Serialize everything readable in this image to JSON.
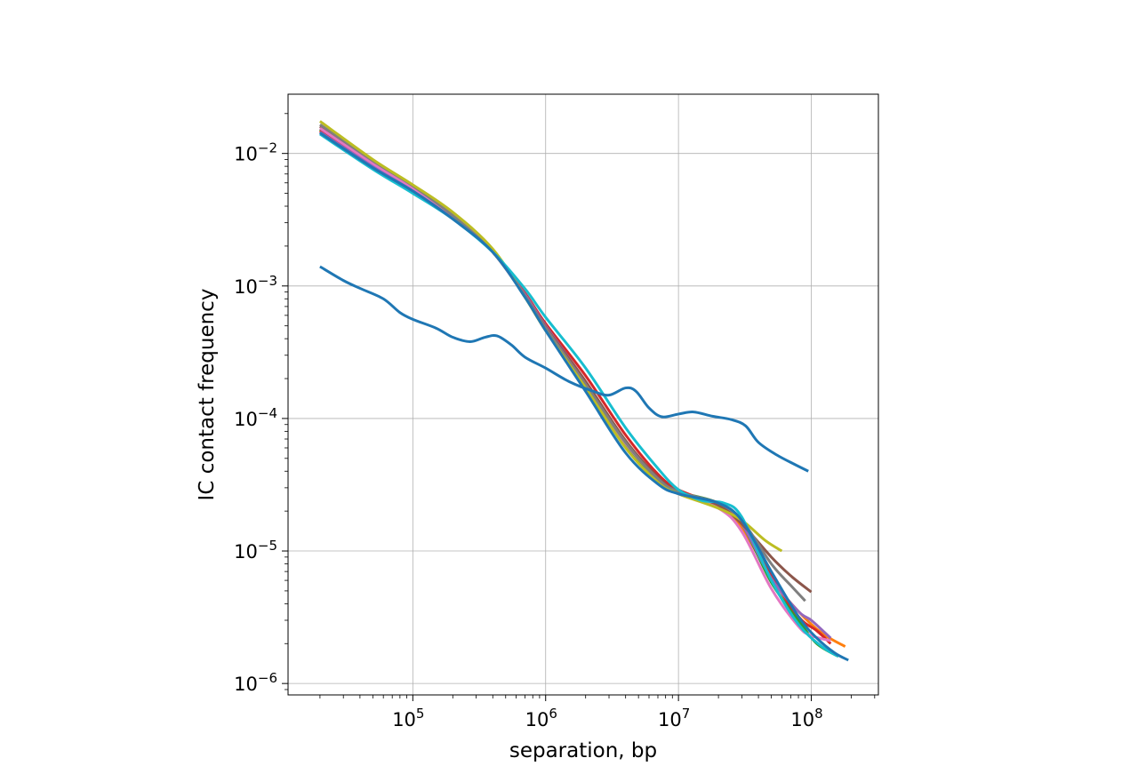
{
  "chart_data": {
    "type": "line",
    "title": "",
    "xlabel": "separation, bp",
    "ylabel": "IC contact frequency",
    "xscale": "log",
    "yscale": "log",
    "xlim": [
      11500,
      320000000
    ],
    "ylim": [
      8.2e-07,
      0.028
    ],
    "grid": true,
    "legend": "none",
    "x_ticks": [
      {
        "value": 100000,
        "base": "10",
        "exp": "5"
      },
      {
        "value": 1000000,
        "base": "10",
        "exp": "6"
      },
      {
        "value": 10000000,
        "base": "10",
        "exp": "7"
      },
      {
        "value": 100000000,
        "base": "10",
        "exp": "8"
      }
    ],
    "y_ticks": [
      {
        "value": 1e-06,
        "base": "10",
        "exp": "−6"
      },
      {
        "value": 1e-05,
        "base": "10",
        "exp": "−5"
      },
      {
        "value": 0.0001,
        "base": "10",
        "exp": "−4"
      },
      {
        "value": 0.001,
        "base": "10",
        "exp": "−3"
      },
      {
        "value": 0.01,
        "base": "10",
        "exp": "−2"
      }
    ],
    "series": [
      {
        "color": "#ff7f0e",
        "points": [
          [
            20000,
            0.015
          ],
          [
            50000,
            0.0082
          ],
          [
            100000,
            0.0054
          ],
          [
            200000,
            0.0033
          ],
          [
            400000,
            0.0018
          ],
          [
            700000,
            0.00085
          ],
          [
            1000000,
            0.0005
          ],
          [
            2000000,
            0.00019
          ],
          [
            4000000,
            6.8e-05
          ],
          [
            7000000,
            3.6e-05
          ],
          [
            10000000,
            2.8e-05
          ],
          [
            20000000,
            2.2e-05
          ],
          [
            30000000,
            1.5e-05
          ],
          [
            50000000,
            6.2e-06
          ],
          [
            80000000,
            3.5e-06
          ],
          [
            120000000,
            2.4e-06
          ],
          [
            180000000,
            1.9e-06
          ]
        ]
      },
      {
        "color": "#2ca02c",
        "points": [
          [
            20000,
            0.0152
          ],
          [
            50000,
            0.0084
          ],
          [
            100000,
            0.0056
          ],
          [
            200000,
            0.0034
          ],
          [
            400000,
            0.0018
          ],
          [
            700000,
            0.00083
          ],
          [
            1000000,
            0.00047
          ],
          [
            2000000,
            0.00017
          ],
          [
            4000000,
            6.2e-05
          ],
          [
            7000000,
            3.4e-05
          ],
          [
            10000000,
            2.8e-05
          ],
          [
            20000000,
            2.3e-05
          ],
          [
            30000000,
            1.6e-05
          ],
          [
            50000000,
            5.8e-06
          ],
          [
            80000000,
            3e-06
          ],
          [
            110000000,
            2e-06
          ],
          [
            160000000,
            1.6e-06
          ]
        ]
      },
      {
        "color": "#d62728",
        "points": [
          [
            20000,
            0.0148
          ],
          [
            50000,
            0.0081
          ],
          [
            100000,
            0.0053
          ],
          [
            200000,
            0.0033
          ],
          [
            400000,
            0.0018
          ],
          [
            700000,
            0.00088
          ],
          [
            1000000,
            0.00052
          ],
          [
            2000000,
            0.00021
          ],
          [
            4000000,
            7.5e-05
          ],
          [
            7000000,
            3.8e-05
          ],
          [
            10000000,
            2.9e-05
          ],
          [
            20000000,
            2.2e-05
          ],
          [
            30000000,
            1.7e-05
          ],
          [
            50000000,
            6.5e-06
          ],
          [
            80000000,
            3.2e-06
          ],
          [
            110000000,
            2.5e-06
          ],
          [
            140000000,
            2e-06
          ]
        ]
      },
      {
        "color": "#9467bd",
        "points": [
          [
            20000,
            0.0145
          ],
          [
            50000,
            0.008
          ],
          [
            100000,
            0.0053
          ],
          [
            200000,
            0.0033
          ],
          [
            400000,
            0.0018
          ],
          [
            700000,
            0.00086
          ],
          [
            1000000,
            0.0005
          ],
          [
            2000000,
            0.00019
          ],
          [
            4000000,
            6.7e-05
          ],
          [
            7000000,
            3.5e-05
          ],
          [
            10000000,
            2.7e-05
          ],
          [
            20000000,
            2.3e-05
          ],
          [
            30000000,
            1.6e-05
          ],
          [
            50000000,
            6.2e-06
          ],
          [
            80000000,
            3.5e-06
          ],
          [
            100000000,
            3e-06
          ],
          [
            140000000,
            2.2e-06
          ]
        ]
      },
      {
        "color": "#8c564b",
        "points": [
          [
            20000,
            0.016
          ],
          [
            50000,
            0.0086
          ],
          [
            100000,
            0.0056
          ],
          [
            200000,
            0.0034
          ],
          [
            400000,
            0.0018
          ],
          [
            700000,
            0.00084
          ],
          [
            1000000,
            0.00049
          ],
          [
            2000000,
            0.00019
          ],
          [
            4000000,
            6.8e-05
          ],
          [
            7000000,
            3.6e-05
          ],
          [
            10000000,
            2.8e-05
          ],
          [
            20000000,
            2.2e-05
          ],
          [
            30000000,
            1.6e-05
          ],
          [
            50000000,
            9e-06
          ],
          [
            70000000,
            6.5e-06
          ],
          [
            100000000,
            4.9e-06
          ]
        ]
      },
      {
        "color": "#e377c2",
        "points": [
          [
            20000,
            0.0155
          ],
          [
            50000,
            0.0084
          ],
          [
            100000,
            0.0055
          ],
          [
            200000,
            0.0034
          ],
          [
            400000,
            0.0018
          ],
          [
            700000,
            0.00083
          ],
          [
            1000000,
            0.00048
          ],
          [
            2000000,
            0.00018
          ],
          [
            4000000,
            6.5e-05
          ],
          [
            7000000,
            3.5e-05
          ],
          [
            10000000,
            2.7e-05
          ],
          [
            20000000,
            2.1e-05
          ],
          [
            30000000,
            1.4e-05
          ],
          [
            50000000,
            5.2e-06
          ],
          [
            80000000,
            2.7e-06
          ],
          [
            100000000,
            2.3e-06
          ],
          [
            140000000,
            2.1e-06
          ]
        ]
      },
      {
        "color": "#7f7f7f",
        "points": [
          [
            20000,
            0.0165
          ],
          [
            50000,
            0.0088
          ],
          [
            100000,
            0.0057
          ],
          [
            200000,
            0.0034
          ],
          [
            400000,
            0.0018
          ],
          [
            700000,
            0.00084
          ],
          [
            1000000,
            0.00048
          ],
          [
            2000000,
            0.00018
          ],
          [
            4000000,
            6.6e-05
          ],
          [
            7000000,
            3.5e-05
          ],
          [
            10000000,
            2.8e-05
          ],
          [
            20000000,
            2.3e-05
          ],
          [
            30000000,
            1.7e-05
          ],
          [
            50000000,
            8e-06
          ],
          [
            70000000,
            5.5e-06
          ],
          [
            90000000,
            4.2e-06
          ]
        ]
      },
      {
        "color": "#bcbd22",
        "points": [
          [
            20000,
            0.0175
          ],
          [
            50000,
            0.009
          ],
          [
            100000,
            0.0058
          ],
          [
            200000,
            0.0036
          ],
          [
            400000,
            0.0019
          ],
          [
            700000,
            0.00082
          ],
          [
            1000000,
            0.00046
          ],
          [
            2000000,
            0.00017
          ],
          [
            4000000,
            6e-05
          ],
          [
            7000000,
            3.3e-05
          ],
          [
            10000000,
            2.7e-05
          ],
          [
            20000000,
            2.1e-05
          ],
          [
            30000000,
            1.7e-05
          ],
          [
            45000000,
            1.2e-05
          ],
          [
            60000000,
            1e-05
          ]
        ]
      },
      {
        "color": "#17becf",
        "points": [
          [
            20000,
            0.014
          ],
          [
            50000,
            0.0076
          ],
          [
            100000,
            0.005
          ],
          [
            200000,
            0.0032
          ],
          [
            400000,
            0.0018
          ],
          [
            700000,
            0.00095
          ],
          [
            1000000,
            0.00058
          ],
          [
            2000000,
            0.00024
          ],
          [
            4000000,
            8.5e-05
          ],
          [
            7000000,
            4.2e-05
          ],
          [
            10000000,
            2.9e-05
          ],
          [
            15000000,
            2.4e-05
          ],
          [
            22000000,
            2.3e-05
          ],
          [
            30000000,
            1.8e-05
          ],
          [
            50000000,
            6e-06
          ],
          [
            80000000,
            2.8e-06
          ],
          [
            120000000,
            1.9e-06
          ],
          [
            160000000,
            1.6e-06
          ]
        ]
      },
      {
        "color": "#1f77b4",
        "points": [
          [
            20000,
            0.0143
          ],
          [
            50000,
            0.0078
          ],
          [
            100000,
            0.0052
          ],
          [
            200000,
            0.0032
          ],
          [
            400000,
            0.0018
          ],
          [
            700000,
            0.00082
          ],
          [
            1000000,
            0.00046
          ],
          [
            2000000,
            0.00016
          ],
          [
            4000000,
            5.5e-05
          ],
          [
            7000000,
            3.2e-05
          ],
          [
            10000000,
            2.7e-05
          ],
          [
            20000000,
            2.3e-05
          ],
          [
            30000000,
            1.7e-05
          ],
          [
            50000000,
            7e-06
          ],
          [
            80000000,
            3.2e-06
          ],
          [
            110000000,
            2.2e-06
          ],
          [
            150000000,
            1.7e-06
          ],
          [
            190000000,
            1.5e-06
          ]
        ]
      },
      {
        "color": "#1f77b4",
        "points": [
          [
            20000,
            0.0014
          ],
          [
            30000,
            0.0011
          ],
          [
            40000,
            0.00096
          ],
          [
            60000,
            0.0008
          ],
          [
            80000,
            0.00063
          ],
          [
            100000,
            0.00056
          ],
          [
            150000,
            0.00048
          ],
          [
            200000,
            0.00041
          ],
          [
            270000,
            0.00038
          ],
          [
            350000,
            0.00041
          ],
          [
            430000,
            0.00042
          ],
          [
            550000,
            0.00036
          ],
          [
            700000,
            0.00029
          ],
          [
            1000000,
            0.00024
          ],
          [
            1500000,
            0.00019
          ],
          [
            2300000,
            0.00016
          ],
          [
            3000000,
            0.00015
          ],
          [
            4000000,
            0.00017
          ],
          [
            4800000,
            0.00016
          ],
          [
            6000000,
            0.00012
          ],
          [
            7500000,
            0.000103
          ],
          [
            10000000,
            0.000108
          ],
          [
            13000000,
            0.000112
          ],
          [
            18000000,
            0.000104
          ],
          [
            25000000,
            9.8e-05
          ],
          [
            32000000,
            8.8e-05
          ],
          [
            40000000,
            6.6e-05
          ],
          [
            55000000,
            5.3e-05
          ],
          [
            75000000,
            4.5e-05
          ],
          [
            95000000,
            4e-05
          ]
        ]
      }
    ]
  }
}
